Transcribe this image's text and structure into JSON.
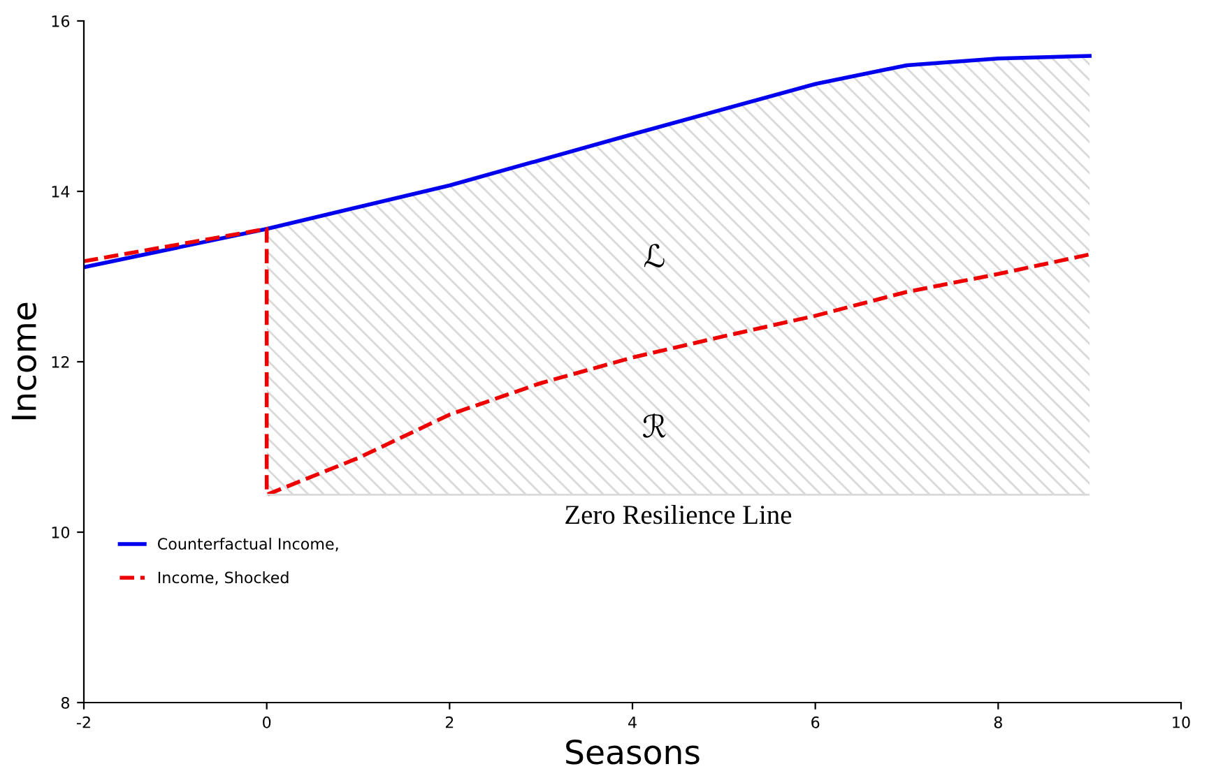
{
  "chart_data": {
    "type": "line",
    "xlabel": "Seasons",
    "ylabel": "Income",
    "xlim": [
      -2,
      10
    ],
    "ylim": [
      8,
      16
    ],
    "xticks": [
      -2,
      0,
      2,
      4,
      6,
      8,
      10
    ],
    "yticks": [
      8,
      10,
      12,
      14,
      16
    ],
    "grid": false,
    "legend": "lower left",
    "series": [
      {
        "type": "area",
        "color": "#d9d9d9",
        "x": [
          0,
          2,
          4,
          6,
          7,
          8,
          9
        ],
        "values": [
          13.56,
          14.07,
          14.67,
          15.26,
          15.48,
          15.56,
          15.59
        ]
      },
      {
        "name": "Counterfactual Income,",
        "color": "#0000ee",
        "line_style": "solid",
        "x": [
          -2,
          0,
          2,
          4,
          6,
          7,
          8,
          9
        ],
        "values": [
          13.11,
          13.56,
          14.07,
          14.67,
          15.26,
          15.48,
          15.56,
          15.59
        ]
      },
      {
        "name": "Income, Shocked",
        "color": "#ee0000",
        "line_style": "dashed",
        "x": [
          -2,
          0,
          0,
          1,
          2,
          3,
          4,
          5,
          6,
          7,
          8,
          9
        ],
        "values": [
          13.18,
          13.56,
          10.44,
          10.87,
          11.38,
          11.75,
          12.05,
          12.3,
          12.54,
          12.82,
          13.03,
          13.26
        ]
      }
    ],
    "ref_lines": [
      {
        "axis": "y",
        "value": 10.44,
        "label": "Zero Resilience Line",
        "color": "#d9d9d9"
      }
    ],
    "annotations": [
      "ℒ",
      "ℛ"
    ]
  }
}
